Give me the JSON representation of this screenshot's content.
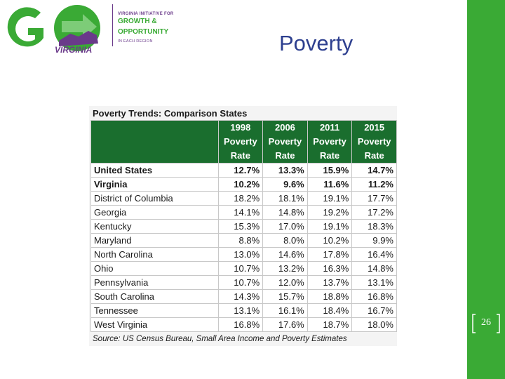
{
  "logo": {
    "big_text": "GO",
    "virginia": "VIRGINIA",
    "line1": "VIRGINIA INITIATIVE FOR",
    "line2": "GROWTH &",
    "line3": "OPPORTUNITY",
    "line4": "IN EACH REGION"
  },
  "slide": {
    "title": "Poverty",
    "page_number": "26"
  },
  "table": {
    "title": "Poverty Trends: Comparison States",
    "headers": [
      [
        "1998",
        "Poverty",
        "Rate"
      ],
      [
        "2006",
        "Poverty",
        "Rate"
      ],
      [
        "2011",
        "Poverty",
        "Rate"
      ],
      [
        "2015",
        "Poverty",
        "Rate"
      ]
    ],
    "rows": [
      {
        "state": "United States",
        "values": [
          "12.7%",
          "13.3%",
          "15.9%",
          "14.7%"
        ],
        "bold": true
      },
      {
        "state": "Virginia",
        "values": [
          "10.2%",
          "9.6%",
          "11.6%",
          "11.2%"
        ],
        "bold": true
      },
      {
        "state": "District of Columbia",
        "values": [
          "18.2%",
          "18.1%",
          "19.1%",
          "17.7%"
        ]
      },
      {
        "state": "Georgia",
        "values": [
          "14.1%",
          "14.8%",
          "19.2%",
          "17.2%"
        ]
      },
      {
        "state": "Kentucky",
        "values": [
          "15.3%",
          "17.0%",
          "19.1%",
          "18.3%"
        ]
      },
      {
        "state": "Maryland",
        "values": [
          "8.8%",
          "8.0%",
          "10.2%",
          "9.9%"
        ]
      },
      {
        "state": "North Carolina",
        "values": [
          "13.0%",
          "14.6%",
          "17.8%",
          "16.4%"
        ]
      },
      {
        "state": "Ohio",
        "values": [
          "10.7%",
          "13.2%",
          "16.3%",
          "14.8%"
        ]
      },
      {
        "state": "Pennsylvania",
        "values": [
          "10.7%",
          "12.0%",
          "13.7%",
          "13.1%"
        ]
      },
      {
        "state": "South Carolina",
        "values": [
          "14.3%",
          "15.7%",
          "18.8%",
          "16.8%"
        ]
      },
      {
        "state": "Tennessee",
        "values": [
          "13.1%",
          "16.1%",
          "18.4%",
          "16.7%"
        ]
      },
      {
        "state": "West Virginia",
        "values": [
          "16.8%",
          "17.6%",
          "18.7%",
          "18.0%"
        ]
      }
    ],
    "source": "Source: US Census Bureau, Small Area Income and Poverty Estimates"
  },
  "colors": {
    "green": "#3aaa35",
    "dark_green": "#1a6e2e",
    "purple": "#6a3a8a",
    "title_blue": "#2d3f8f"
  }
}
